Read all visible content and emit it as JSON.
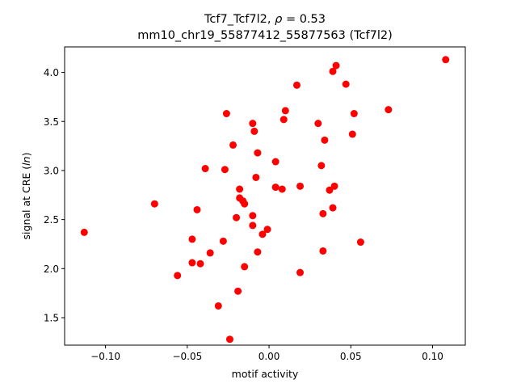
{
  "chart_data": {
    "type": "scatter",
    "title_line1_prefix": "Tcf7_Tcf7l2, ",
    "title_line1_rho": "ρ",
    "title_line1_suffix": " = 0.53",
    "title_line2": "mm10_chr19_55877412_55877563 (Tcf7l2)",
    "xlabel": "motif activity",
    "ylabel_prefix": "signal at CRE (",
    "ylabel_italic": "ln",
    "ylabel_suffix": ")",
    "xlim": [
      -0.125,
      0.12
    ],
    "ylim": [
      1.22,
      4.26
    ],
    "xticks": [
      -0.1,
      -0.05,
      0.0,
      0.05,
      0.1
    ],
    "xtick_labels": [
      "−0.10",
      "−0.05",
      "0.00",
      "0.05",
      "0.10"
    ],
    "yticks": [
      1.5,
      2.0,
      2.5,
      3.0,
      3.5,
      4.0
    ],
    "ytick_labels": [
      "1.5",
      "2.0",
      "2.5",
      "3.0",
      "3.5",
      "4.0"
    ],
    "grid": false,
    "marker_color": "#ff0000",
    "points": [
      {
        "x": 0.108,
        "y": 4.13
      },
      {
        "x": 0.041,
        "y": 4.07
      },
      {
        "x": 0.039,
        "y": 4.01
      },
      {
        "x": 0.047,
        "y": 3.88
      },
      {
        "x": 0.017,
        "y": 3.87
      },
      {
        "x": 0.01,
        "y": 3.61
      },
      {
        "x": 0.073,
        "y": 3.62
      },
      {
        "x": 0.052,
        "y": 3.58
      },
      {
        "x": -0.026,
        "y": 3.58
      },
      {
        "x": 0.009,
        "y": 3.52
      },
      {
        "x": 0.03,
        "y": 3.48
      },
      {
        "x": -0.01,
        "y": 3.48
      },
      {
        "x": -0.009,
        "y": 3.4
      },
      {
        "x": 0.051,
        "y": 3.37
      },
      {
        "x": 0.034,
        "y": 3.31
      },
      {
        "x": -0.022,
        "y": 3.26
      },
      {
        "x": -0.007,
        "y": 3.18
      },
      {
        "x": 0.004,
        "y": 3.09
      },
      {
        "x": 0.032,
        "y": 3.05
      },
      {
        "x": -0.039,
        "y": 3.02
      },
      {
        "x": -0.027,
        "y": 3.01
      },
      {
        "x": -0.008,
        "y": 2.93
      },
      {
        "x": 0.04,
        "y": 2.84
      },
      {
        "x": 0.019,
        "y": 2.84
      },
      {
        "x": 0.004,
        "y": 2.83
      },
      {
        "x": 0.008,
        "y": 2.81
      },
      {
        "x": -0.018,
        "y": 2.81
      },
      {
        "x": 0.037,
        "y": 2.8
      },
      {
        "x": -0.018,
        "y": 2.72
      },
      {
        "x": -0.016,
        "y": 2.69
      },
      {
        "x": -0.015,
        "y": 2.66
      },
      {
        "x": -0.07,
        "y": 2.66
      },
      {
        "x": 0.039,
        "y": 2.62
      },
      {
        "x": -0.044,
        "y": 2.6
      },
      {
        "x": 0.033,
        "y": 2.56
      },
      {
        "x": -0.01,
        "y": 2.54
      },
      {
        "x": -0.02,
        "y": 2.52
      },
      {
        "x": -0.01,
        "y": 2.44
      },
      {
        "x": -0.001,
        "y": 2.4
      },
      {
        "x": -0.113,
        "y": 2.37
      },
      {
        "x": -0.004,
        "y": 2.35
      },
      {
        "x": -0.047,
        "y": 2.3
      },
      {
        "x": -0.028,
        "y": 2.28
      },
      {
        "x": 0.056,
        "y": 2.27
      },
      {
        "x": 0.033,
        "y": 2.18
      },
      {
        "x": -0.007,
        "y": 2.17
      },
      {
        "x": -0.036,
        "y": 2.16
      },
      {
        "x": -0.047,
        "y": 2.06
      },
      {
        "x": -0.042,
        "y": 2.05
      },
      {
        "x": -0.015,
        "y": 2.02
      },
      {
        "x": 0.019,
        "y": 1.96
      },
      {
        "x": -0.056,
        "y": 1.93
      },
      {
        "x": -0.019,
        "y": 1.77
      },
      {
        "x": -0.031,
        "y": 1.62
      },
      {
        "x": -0.024,
        "y": 1.28
      }
    ]
  }
}
